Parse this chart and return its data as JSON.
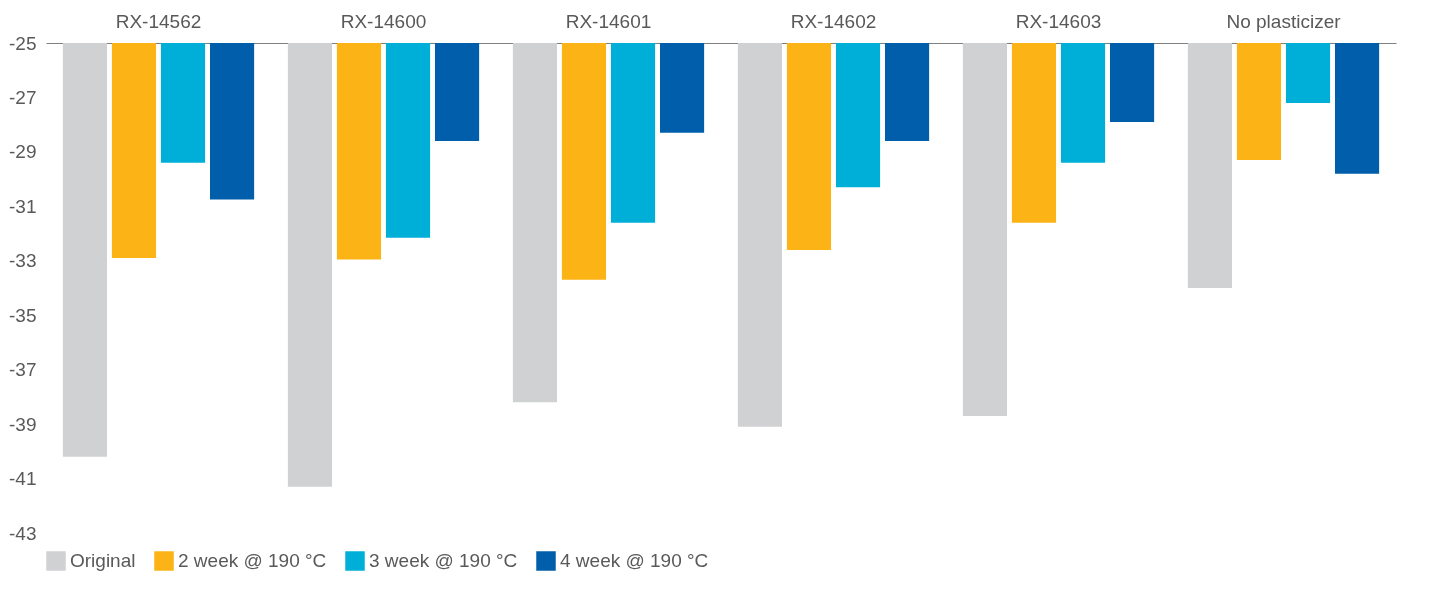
{
  "chart_data": {
    "type": "bar",
    "categories": [
      "RX-14562",
      "RX-14600",
      "RX-14601",
      "RX-14602",
      "RX-14603",
      "No plasticizer"
    ],
    "series": [
      {
        "name": "Original",
        "color": "#d0d1d3",
        "values": [
          -40.2,
          -41.3,
          -38.2,
          -39.1,
          -38.7,
          -34.0
        ]
      },
      {
        "name": "2 week @ 190 °C",
        "color": "#fbb316",
        "values": [
          -32.9,
          -32.95,
          -33.7,
          -32.6,
          -31.6,
          -29.3
        ]
      },
      {
        "name": "3 week @ 190 °C",
        "color": "#00afd8",
        "values": [
          -29.4,
          -32.15,
          -31.6,
          -30.3,
          -29.4,
          -27.2
        ]
      },
      {
        "name": "4 week @ 190 °C",
        "color": "#005eaa",
        "values": [
          -30.75,
          -28.6,
          -28.3,
          -28.6,
          -27.9,
          -29.8
        ]
      }
    ],
    "ylim": [
      -43,
      -25
    ],
    "yticks": [
      -25,
      -27,
      -29,
      -31,
      -33,
      -35,
      -37,
      -39,
      -41,
      -43
    ],
    "grid": false,
    "legend": "bottom"
  }
}
